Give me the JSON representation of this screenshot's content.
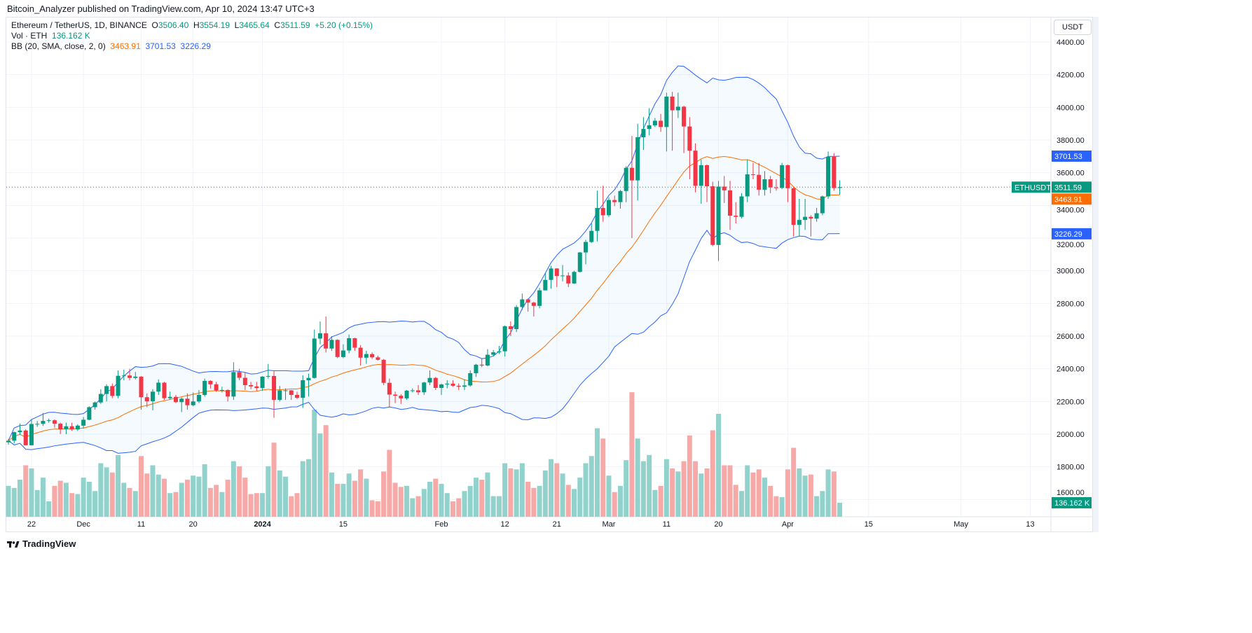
{
  "publisher_line": "Bitcoin_Analyzer published on TradingView.com, Apr 10, 2024 13:47 UTC+3",
  "legend": {
    "symbol": "Ethereum / TetherUS, 1D, BINANCE",
    "o_label": "O",
    "o": "3506.40",
    "h_label": "H",
    "h": "3554.19",
    "l_label": "L",
    "l": "3465.64",
    "c_label": "C",
    "c": "3511.59",
    "change": "+5.20 (+0.15%)",
    "vol_label": "Vol · ETH",
    "vol": "136.162 K",
    "bb_label": "BB (20, SMA, close, 2, 0)",
    "bb_basis": "3463.91",
    "bb_upper": "3701.53",
    "bb_lower": "3226.29"
  },
  "price_axis": {
    "unit_button": "USDT",
    "ticks": [
      "4400.00",
      "4200.00",
      "4000.00",
      "3800.00",
      "3600.00",
      "3400.00",
      "3200.00",
      "3000.00",
      "2800.00",
      "2600.00",
      "2400.00",
      "2200.00",
      "2000.00",
      "1800.00",
      "1600.00"
    ],
    "tags": {
      "upper": {
        "text": "3701.53",
        "value": 3701.53,
        "color": "#2962ff"
      },
      "last": {
        "text": "3511.59",
        "value": 3511.59,
        "color": "#089981",
        "symbol": "ETHUSDT"
      },
      "basis": {
        "text": "3463.91",
        "value": 3463.91,
        "color": "#ff6d00"
      },
      "lower": {
        "text": "3226.29",
        "value": 3226.29,
        "color": "#2962ff"
      },
      "volume": {
        "text": "136.162 K",
        "value": 136.162,
        "color": "#089981"
      }
    }
  },
  "time_axis": [
    {
      "label": "22",
      "date": "2023-11-22"
    },
    {
      "label": "Dec",
      "date": "2023-12-01"
    },
    {
      "label": "11",
      "date": "2023-12-11"
    },
    {
      "label": "20",
      "date": "2023-12-20"
    },
    {
      "label": "2024",
      "date": "2024-01-01",
      "bold": true
    },
    {
      "label": "15",
      "date": "2024-01-15"
    },
    {
      "label": "Feb",
      "date": "2024-02-01"
    },
    {
      "label": "12",
      "date": "2024-02-12"
    },
    {
      "label": "21",
      "date": "2024-02-21"
    },
    {
      "label": "Mar",
      "date": "2024-03-01"
    },
    {
      "label": "11",
      "date": "2024-03-11"
    },
    {
      "label": "20",
      "date": "2024-03-20"
    },
    {
      "label": "Apr",
      "date": "2024-04-01"
    },
    {
      "label": "15",
      "date": "2024-04-15"
    },
    {
      "label": "May",
      "date": "2024-05-01"
    },
    {
      "label": "13",
      "date": "2024-05-13"
    }
  ],
  "footer": {
    "brand": "TradingView"
  },
  "colors": {
    "up": "#089981",
    "down": "#f23645",
    "vol_up": "#92d2cc",
    "vol_down": "#f7a9a7",
    "bb_band": "#2962ff",
    "bb_basis": "#ff6d00",
    "bb_fill": "#2196f3"
  },
  "chart_data": {
    "type": "candlestick",
    "symbol": "ETHUSDT",
    "interval": "1D",
    "start_date": "2023-11-18",
    "y_range": [
      1550,
      4480
    ],
    "log_scale": false,
    "grid": true,
    "indicators": [
      "Volume",
      "Bollinger Bands (20, 2)"
    ],
    "columns": [
      "open",
      "high",
      "low",
      "close",
      "volume_k"
    ],
    "candles": [
      [
        1950,
        1970,
        1935,
        1960,
        300
      ],
      [
        1960,
        2015,
        1945,
        2012,
        280
      ],
      [
        2012,
        2065,
        1995,
        2022,
        360
      ],
      [
        2022,
        2030,
        1930,
        1932,
        500
      ],
      [
        1932,
        2090,
        1930,
        2062,
        470
      ],
      [
        2062,
        2080,
        2045,
        2063,
        260
      ],
      [
        2063,
        2130,
        2050,
        2081,
        380
      ],
      [
        2081,
        2095,
        2070,
        2085,
        150
      ],
      [
        2085,
        2090,
        2040,
        2064,
        300
      ],
      [
        2064,
        2070,
        2000,
        2029,
        350
      ],
      [
        2029,
        2070,
        2000,
        2048,
        330
      ],
      [
        2048,
        2070,
        2020,
        2029,
        230
      ],
      [
        2029,
        2060,
        2020,
        2052,
        220
      ],
      [
        2052,
        2105,
        2035,
        2088,
        380
      ],
      [
        2088,
        2170,
        2085,
        2165,
        340
      ],
      [
        2165,
        2200,
        2150,
        2194,
        250
      ],
      [
        2194,
        2275,
        2185,
        2246,
        520
      ],
      [
        2246,
        2305,
        2200,
        2294,
        480
      ],
      [
        2294,
        2310,
        2220,
        2234,
        430
      ],
      [
        2234,
        2390,
        2220,
        2357,
        600
      ],
      [
        2357,
        2395,
        2330,
        2359,
        330
      ],
      [
        2359,
        2400,
        2330,
        2344,
        280
      ],
      [
        2344,
        2380,
        2335,
        2352,
        250
      ],
      [
        2352,
        2355,
        2150,
        2226,
        590
      ],
      [
        2226,
        2250,
        2165,
        2201,
        420
      ],
      [
        2201,
        2275,
        2145,
        2260,
        500
      ],
      [
        2260,
        2335,
        2240,
        2315,
        410
      ],
      [
        2315,
        2320,
        2210,
        2220,
        370
      ],
      [
        2220,
        2260,
        2210,
        2228,
        230
      ],
      [
        2228,
        2240,
        2190,
        2196,
        240
      ],
      [
        2196,
        2225,
        2135,
        2217,
        330
      ],
      [
        2217,
        2250,
        2150,
        2177,
        360
      ],
      [
        2177,
        2255,
        2170,
        2200,
        400
      ],
      [
        2200,
        2270,
        2190,
        2240,
        390
      ],
      [
        2240,
        2340,
        2230,
        2326,
        510
      ],
      [
        2326,
        2330,
        2280,
        2305,
        280
      ],
      [
        2305,
        2320,
        2260,
        2268,
        310
      ],
      [
        2268,
        2290,
        2255,
        2270,
        240
      ],
      [
        2270,
        2275,
        2200,
        2230,
        360
      ],
      [
        2230,
        2440,
        2210,
        2380,
        540
      ],
      [
        2380,
        2400,
        2330,
        2345,
        490
      ],
      [
        2345,
        2380,
        2270,
        2300,
        380
      ],
      [
        2300,
        2320,
        2275,
        2292,
        220
      ],
      [
        2292,
        2320,
        2265,
        2282,
        230
      ],
      [
        2282,
        2355,
        2265,
        2352,
        230
      ],
      [
        2352,
        2430,
        2340,
        2356,
        490
      ],
      [
        2356,
        2385,
        2100,
        2210,
        720
      ],
      [
        2210,
        2295,
        2200,
        2268,
        450
      ],
      [
        2268,
        2280,
        2210,
        2268,
        390
      ],
      [
        2268,
        2270,
        2210,
        2240,
        200
      ],
      [
        2240,
        2260,
        2215,
        2222,
        230
      ],
      [
        2222,
        2360,
        2160,
        2330,
        540
      ],
      [
        2330,
        2370,
        2230,
        2344,
        560
      ],
      [
        2344,
        2640,
        2340,
        2585,
        1040
      ],
      [
        2585,
        2690,
        2550,
        2617,
        810
      ],
      [
        2617,
        2720,
        2500,
        2524,
        890
      ],
      [
        2524,
        2600,
        2510,
        2577,
        430
      ],
      [
        2577,
        2580,
        2465,
        2472,
        320
      ],
      [
        2472,
        2550,
        2465,
        2512,
        320
      ],
      [
        2512,
        2610,
        2495,
        2587,
        420
      ],
      [
        2587,
        2590,
        2510,
        2529,
        350
      ],
      [
        2529,
        2545,
        2420,
        2468,
        460
      ],
      [
        2468,
        2510,
        2430,
        2490,
        370
      ],
      [
        2490,
        2500,
        2460,
        2470,
        160
      ],
      [
        2470,
        2480,
        2450,
        2455,
        150
      ],
      [
        2455,
        2460,
        2300,
        2314,
        440
      ],
      [
        2314,
        2340,
        2165,
        2242,
        650
      ],
      [
        2242,
        2260,
        2190,
        2235,
        330
      ],
      [
        2235,
        2245,
        2185,
        2219,
        290
      ],
      [
        2219,
        2270,
        2210,
        2266,
        300
      ],
      [
        2266,
        2280,
        2255,
        2268,
        180
      ],
      [
        2268,
        2300,
        2240,
        2256,
        200
      ],
      [
        2256,
        2320,
        2240,
        2316,
        270
      ],
      [
        2316,
        2390,
        2300,
        2344,
        340
      ],
      [
        2344,
        2350,
        2270,
        2283,
        370
      ],
      [
        2283,
        2310,
        2240,
        2304,
        320
      ],
      [
        2304,
        2330,
        2280,
        2309,
        230
      ],
      [
        2309,
        2330,
        2290,
        2296,
        150
      ],
      [
        2296,
        2310,
        2270,
        2290,
        180
      ],
      [
        2290,
        2335,
        2270,
        2298,
        250
      ],
      [
        2298,
        2390,
        2290,
        2373,
        300
      ],
      [
        2373,
        2430,
        2350,
        2425,
        380
      ],
      [
        2425,
        2460,
        2410,
        2420,
        360
      ],
      [
        2420,
        2520,
        2415,
        2486,
        430
      ],
      [
        2486,
        2515,
        2475,
        2501,
        200
      ],
      [
        2501,
        2540,
        2490,
        2507,
        200
      ],
      [
        2507,
        2665,
        2475,
        2660,
        520
      ],
      [
        2660,
        2690,
        2600,
        2643,
        470
      ],
      [
        2643,
        2790,
        2625,
        2778,
        460
      ],
      [
        2778,
        2860,
        2760,
        2825,
        520
      ],
      [
        2825,
        2830,
        2750,
        2805,
        340
      ],
      [
        2805,
        2810,
        2720,
        2785,
        280
      ],
      [
        2785,
        2895,
        2770,
        2880,
        300
      ],
      [
        2880,
        2985,
        2880,
        2944,
        450
      ],
      [
        2944,
        3030,
        2890,
        3014,
        560
      ],
      [
        3014,
        3015,
        2900,
        2968,
        520
      ],
      [
        2968,
        3035,
        2935,
        2971,
        420
      ],
      [
        2971,
        2990,
        2900,
        2922,
        310
      ],
      [
        2922,
        3000,
        2920,
        2993,
        270
      ],
      [
        2993,
        3115,
        2990,
        3112,
        380
      ],
      [
        3112,
        3190,
        3040,
        3176,
        520
      ],
      [
        3176,
        3290,
        3170,
        3244,
        590
      ],
      [
        3244,
        3490,
        3180,
        3384,
        860
      ],
      [
        3384,
        3520,
        3300,
        3340,
        760
      ],
      [
        3340,
        3450,
        3330,
        3433,
        400
      ],
      [
        3433,
        3460,
        3395,
        3420,
        240
      ],
      [
        3420,
        3495,
        3380,
        3488,
        300
      ],
      [
        3488,
        3640,
        3420,
        3630,
        550
      ],
      [
        3630,
        3825,
        3200,
        3553,
        1210
      ],
      [
        3553,
        3900,
        3430,
        3817,
        760
      ],
      [
        3817,
        3940,
        3740,
        3868,
        540
      ],
      [
        3868,
        3995,
        3830,
        3890,
        600
      ],
      [
        3890,
        3935,
        3880,
        3918,
        260
      ],
      [
        3918,
        3960,
        3850,
        3880,
        300
      ],
      [
        3880,
        4090,
        3730,
        4066,
        560
      ],
      [
        4066,
        4095,
        3735,
        3982,
        470
      ],
      [
        3982,
        4090,
        3935,
        4004,
        440
      ],
      [
        4004,
        4010,
        3720,
        3883,
        540
      ],
      [
        3883,
        3940,
        3560,
        3735,
        790
      ],
      [
        3735,
        3780,
        3480,
        3520,
        540
      ],
      [
        3520,
        3680,
        3410,
        3646,
        420
      ],
      [
        3646,
        3650,
        3420,
        3517,
        470
      ],
      [
        3517,
        3545,
        3150,
        3158,
        840
      ],
      [
        3158,
        3550,
        3060,
        3515,
        1000
      ],
      [
        3515,
        3580,
        3415,
        3492,
        500
      ],
      [
        3492,
        3550,
        3250,
        3337,
        500
      ],
      [
        3337,
        3420,
        3290,
        3330,
        310
      ],
      [
        3330,
        3475,
        3320,
        3455,
        250
      ],
      [
        3455,
        3680,
        3420,
        3590,
        500
      ],
      [
        3590,
        3660,
        3560,
        3587,
        430
      ],
      [
        3587,
        3660,
        3460,
        3496,
        460
      ],
      [
        3496,
        3610,
        3460,
        3560,
        380
      ],
      [
        3560,
        3580,
        3475,
        3510,
        300
      ],
      [
        3510,
        3560,
        3490,
        3507,
        200
      ],
      [
        3507,
        3660,
        3500,
        3646,
        190
      ],
      [
        3646,
        3650,
        3420,
        3505,
        460
      ],
      [
        3505,
        3510,
        3210,
        3281,
        670
      ],
      [
        3281,
        3440,
        3210,
        3311,
        470
      ],
      [
        3311,
        3440,
        3250,
        3330,
        400
      ],
      [
        3330,
        3340,
        3210,
        3319,
        410
      ],
      [
        3319,
        3385,
        3300,
        3352,
        200
      ],
      [
        3352,
        3460,
        3340,
        3455,
        250
      ],
      [
        3455,
        3730,
        3440,
        3697,
        460
      ],
      [
        3697,
        3720,
        3490,
        3506,
        440
      ],
      [
        3506.4,
        3554.19,
        3465.64,
        3511.59,
        136.162
      ]
    ]
  }
}
